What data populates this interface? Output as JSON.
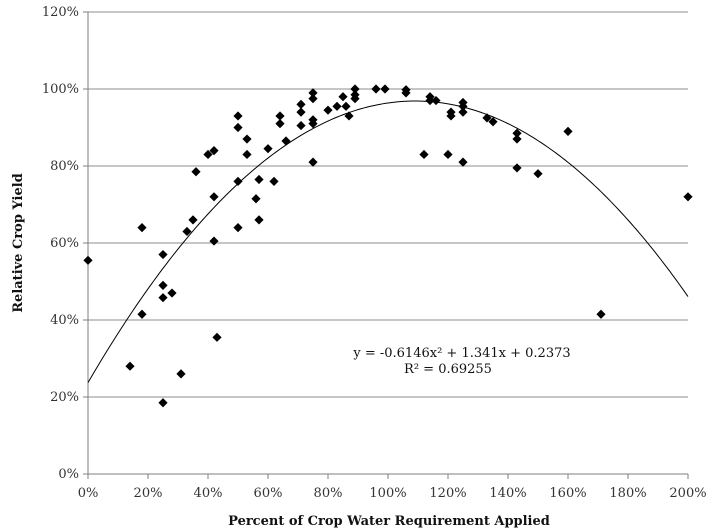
{
  "chart_data": {
    "type": "scatter",
    "title": "",
    "xlabel": "Percent of Crop Water Requirement Applied",
    "ylabel": "Relative Crop Yield",
    "xlim": [
      0,
      2
    ],
    "ylim": [
      0,
      1.2
    ],
    "x_ticks": [
      "0%",
      "20%",
      "40%",
      "60%",
      "80%",
      "100%",
      "120%",
      "140%",
      "160%",
      "180%",
      "200%"
    ],
    "y_ticks": [
      "0%",
      "20%",
      "40%",
      "60%",
      "80%",
      "100%",
      "120%"
    ],
    "grid": "horizontal",
    "legend": "none",
    "marker": "diamond",
    "marker_color": "#000000",
    "trendline": {
      "type": "polynomial",
      "coefficients": [
        -0.6146,
        1.341,
        0.2373
      ],
      "equation": "y = -0.6146x² + 1.341x + 0.2373",
      "r2": "R² = 0.69255"
    },
    "points": [
      [
        0.0,
        0.555
      ],
      [
        0.14,
        0.28
      ],
      [
        0.18,
        0.64
      ],
      [
        0.18,
        0.415
      ],
      [
        0.25,
        0.57
      ],
      [
        0.25,
        0.49
      ],
      [
        0.25,
        0.458
      ],
      [
        0.25,
        0.185
      ],
      [
        0.28,
        0.47
      ],
      [
        0.31,
        0.26
      ],
      [
        0.33,
        0.63
      ],
      [
        0.35,
        0.66
      ],
      [
        0.36,
        0.785
      ],
      [
        0.4,
        0.83
      ],
      [
        0.42,
        0.84
      ],
      [
        0.42,
        0.72
      ],
      [
        0.42,
        0.605
      ],
      [
        0.43,
        0.355
      ],
      [
        0.5,
        0.93
      ],
      [
        0.5,
        0.9
      ],
      [
        0.5,
        0.76
      ],
      [
        0.5,
        0.64
      ],
      [
        0.53,
        0.87
      ],
      [
        0.53,
        0.83
      ],
      [
        0.56,
        0.715
      ],
      [
        0.57,
        0.765
      ],
      [
        0.57,
        0.66
      ],
      [
        0.6,
        0.845
      ],
      [
        0.62,
        0.76
      ],
      [
        0.64,
        0.93
      ],
      [
        0.64,
        0.91
      ],
      [
        0.66,
        0.865
      ],
      [
        0.71,
        0.96
      ],
      [
        0.71,
        0.94
      ],
      [
        0.71,
        0.905
      ],
      [
        0.75,
        0.99
      ],
      [
        0.75,
        0.975
      ],
      [
        0.75,
        0.92
      ],
      [
        0.75,
        0.91
      ],
      [
        0.75,
        0.81
      ],
      [
        0.8,
        0.945
      ],
      [
        0.83,
        0.955
      ],
      [
        0.85,
        0.98
      ],
      [
        0.86,
        0.955
      ],
      [
        0.87,
        0.93
      ],
      [
        0.89,
        1.0
      ],
      [
        0.89,
        0.985
      ],
      [
        0.89,
        0.975
      ],
      [
        0.96,
        1.0
      ],
      [
        0.99,
        1.0
      ],
      [
        1.06,
        0.998
      ],
      [
        1.06,
        0.99
      ],
      [
        1.12,
        0.83
      ],
      [
        1.14,
        0.98
      ],
      [
        1.14,
        0.97
      ],
      [
        1.16,
        0.97
      ],
      [
        1.2,
        0.83
      ],
      [
        1.21,
        0.94
      ],
      [
        1.21,
        0.93
      ],
      [
        1.25,
        0.965
      ],
      [
        1.25,
        0.955
      ],
      [
        1.25,
        0.94
      ],
      [
        1.25,
        0.81
      ],
      [
        1.33,
        0.925
      ],
      [
        1.35,
        0.915
      ],
      [
        1.43,
        0.885
      ],
      [
        1.43,
        0.87
      ],
      [
        1.43,
        0.795
      ],
      [
        1.5,
        0.78
      ],
      [
        1.6,
        0.89
      ],
      [
        1.71,
        0.415
      ],
      [
        2.0,
        0.72
      ]
    ]
  }
}
